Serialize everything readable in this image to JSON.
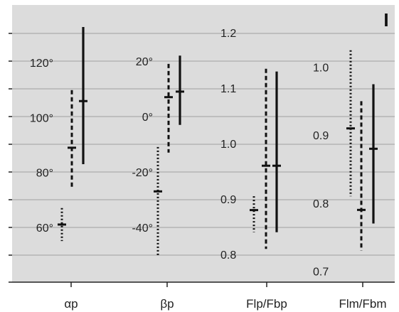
{
  "panel_label": "I",
  "chart_data": {
    "type": "range",
    "title": "",
    "grid": true,
    "colors": {
      "background": "#dcdcdc",
      "grid": "#a0a0a0",
      "marks": "#111111",
      "text": "#222222"
    },
    "line_styles": [
      "dotted",
      "dashed",
      "solid"
    ],
    "panels": [
      {
        "category": "αp",
        "axis_range": [
          40,
          140
        ],
        "tick_labels": [
          {
            "value": 60,
            "label": "60°"
          },
          {
            "value": 80,
            "label": "80°"
          },
          {
            "value": 100,
            "label": "100°"
          },
          {
            "value": 120,
            "label": "120°"
          }
        ],
        "ranges": [
          {
            "style": "dotted",
            "min": 55,
            "max": 67,
            "mid": 61
          },
          {
            "style": "dashed",
            "min": 74,
            "max": 110,
            "mid": 89
          },
          {
            "style": "solid",
            "min": 83,
            "max": 133,
            "mid": 106
          }
        ]
      },
      {
        "category": "βp",
        "axis_range": [
          -60,
          40
        ],
        "tick_labels": [
          {
            "value": -40,
            "label": "-40°"
          },
          {
            "value": -20,
            "label": "-20°"
          },
          {
            "value": 0,
            "label": "0°"
          },
          {
            "value": 20,
            "label": "20°"
          }
        ],
        "ranges": [
          {
            "style": "dotted",
            "min": -50,
            "max": -11,
            "mid": -27
          },
          {
            "style": "dashed",
            "min": -13,
            "max": 19,
            "mid": 7
          },
          {
            "style": "solid",
            "min": -3,
            "max": 22,
            "mid": 9
          }
        ]
      },
      {
        "category": "Flp/Fbp",
        "axis_range": [
          0.75,
          1.25
        ],
        "tick_labels": [
          {
            "value": 0.8,
            "label": "0.8"
          },
          {
            "value": 0.9,
            "label": "0.9"
          },
          {
            "value": 1.0,
            "label": "1.0"
          },
          {
            "value": 1.1,
            "label": "1.1"
          },
          {
            "value": 1.2,
            "label": "1.2"
          }
        ],
        "ranges": [
          {
            "style": "dotted",
            "min": 0.84,
            "max": 0.905,
            "mid": 0.88
          },
          {
            "style": "dashed",
            "min": 0.81,
            "max": 1.135,
            "mid": 0.96
          },
          {
            "style": "solid",
            "min": 0.84,
            "max": 1.13,
            "mid": 0.96
          }
        ]
      },
      {
        "category": "Flm/Fbm",
        "axis_range": [
          0.6,
          1.1
        ],
        "tick_labels": [
          {
            "value": 0.7,
            "label": "0.7"
          },
          {
            "value": 0.8,
            "label": "0.8"
          },
          {
            "value": 0.9,
            "label": "0.9"
          },
          {
            "value": 1.0,
            "label": "1.0"
          }
        ],
        "ranges": [
          {
            "style": "dotted",
            "min": 0.81,
            "max": 1.025,
            "mid": 0.91
          },
          {
            "style": "dashed",
            "min": 0.73,
            "max": 0.95,
            "mid": 0.79
          },
          {
            "style": "solid",
            "min": 0.77,
            "max": 0.975,
            "mid": 0.88
          }
        ]
      }
    ]
  }
}
